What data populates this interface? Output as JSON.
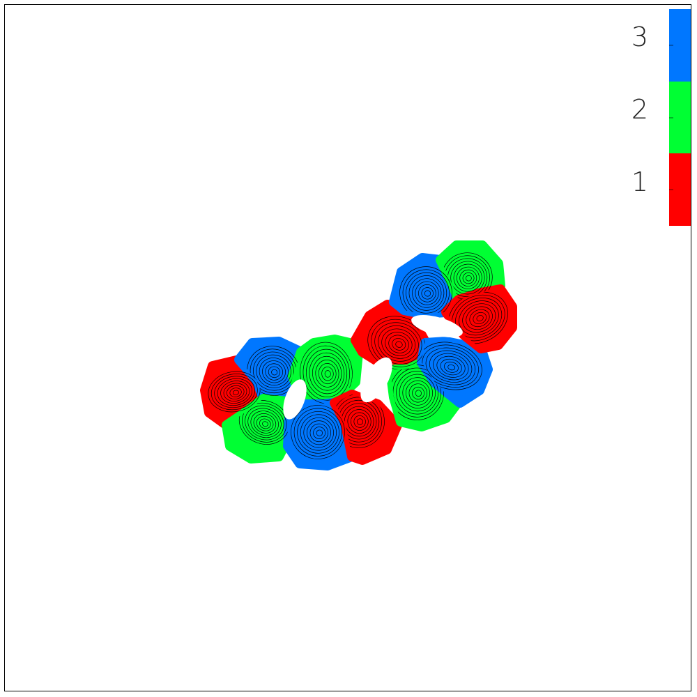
{
  "colorbar": {
    "levels": [
      {
        "value": 1,
        "label": "1",
        "color": "#ff0000"
      },
      {
        "value": 2,
        "label": "2",
        "color": "#00ff33"
      },
      {
        "value": 3,
        "label": "3",
        "color": "#0077ff"
      }
    ]
  },
  "domain": {
    "regions": [
      {
        "id": "r1",
        "level": 1
      },
      {
        "id": "r2",
        "level": 3
      },
      {
        "id": "r3",
        "level": 2
      },
      {
        "id": "r4",
        "level": 2
      },
      {
        "id": "r5",
        "level": 3
      },
      {
        "id": "r6",
        "level": 1
      },
      {
        "id": "r7",
        "level": 1
      },
      {
        "id": "r8",
        "level": 2
      },
      {
        "id": "r9",
        "level": 3
      },
      {
        "id": "r10",
        "level": 3
      },
      {
        "id": "r11",
        "level": 2
      },
      {
        "id": "r12",
        "level": 1
      }
    ]
  }
}
